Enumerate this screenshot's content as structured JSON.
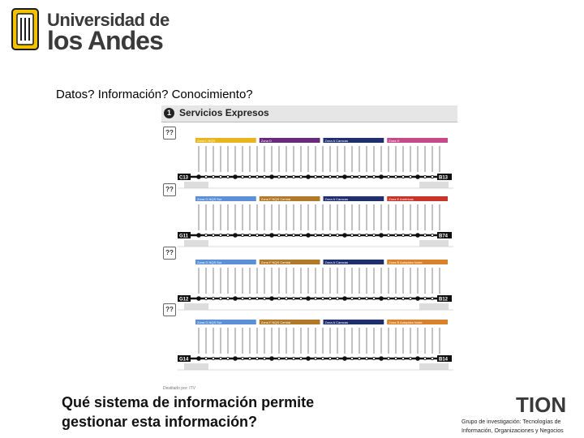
{
  "header": {
    "logo_line1": "Universidad de",
    "logo_line2": "los Andes"
  },
  "slide": {
    "subtitle": "Datos? Información? Conocimiento?",
    "question_line1": "Qué sistema de información permite",
    "question_line2": "gestionar esta información?"
  },
  "map": {
    "number": "1",
    "title": "Servicios Expresos",
    "service_codes": [
      "??",
      "??",
      "??",
      "??"
    ],
    "footnote": "Destilado por: ITV",
    "colors": {
      "gold": "#e8b51e",
      "purple": "#6a2a7a",
      "navy": "#1f2f6e",
      "blue": "#5b8fd6",
      "brown": "#b07a2a",
      "red": "#c8342a",
      "orange": "#d9822b",
      "pink": "#c64a8a",
      "teal": "#2a8c8c"
    },
    "rows": [
      {
        "bands": [
          {
            "color": "gold",
            "label": "Zona L  NQS"
          },
          {
            "color": "purple",
            "label": "Zona D"
          },
          {
            "color": "navy",
            "label": "Zona A  Caracas"
          },
          {
            "color": "pink",
            "label": "Zona H"
          }
        ],
        "end_left": "C13",
        "end_right": "B13"
      },
      {
        "bands": [
          {
            "color": "blue",
            "label": "Zona G  NQS Sur"
          },
          {
            "color": "brown",
            "label": "Zona F  NQS Central"
          },
          {
            "color": "navy",
            "label": "Zona A  Caracas"
          },
          {
            "color": "red",
            "label": "Zona E  Américas"
          }
        ],
        "end_left": "G11",
        "end_right": "B74"
      },
      {
        "bands": [
          {
            "color": "blue",
            "label": "Zona G  NQS Sur"
          },
          {
            "color": "brown",
            "label": "Zona F  NQS Central"
          },
          {
            "color": "navy",
            "label": "Zona A  Caracas"
          },
          {
            "color": "orange",
            "label": "Zona B  Autopista Norte"
          }
        ],
        "end_left": "G12",
        "end_right": "B12"
      },
      {
        "bands": [
          {
            "color": "blue",
            "label": "Zona G  NQS Sur"
          },
          {
            "color": "brown",
            "label": "Zona F  NQS Central"
          },
          {
            "color": "navy",
            "label": "Zona A  Caracas"
          },
          {
            "color": "orange",
            "label": "Zona B  Autopista Norte"
          }
        ],
        "end_left": "G14",
        "end_right": "B14"
      }
    ]
  },
  "footer": {
    "brand": "TION",
    "caption_line1": "Grupo de investigación: Tecnologías de",
    "caption_line2": "Información, Organizaciones y Negocios"
  }
}
